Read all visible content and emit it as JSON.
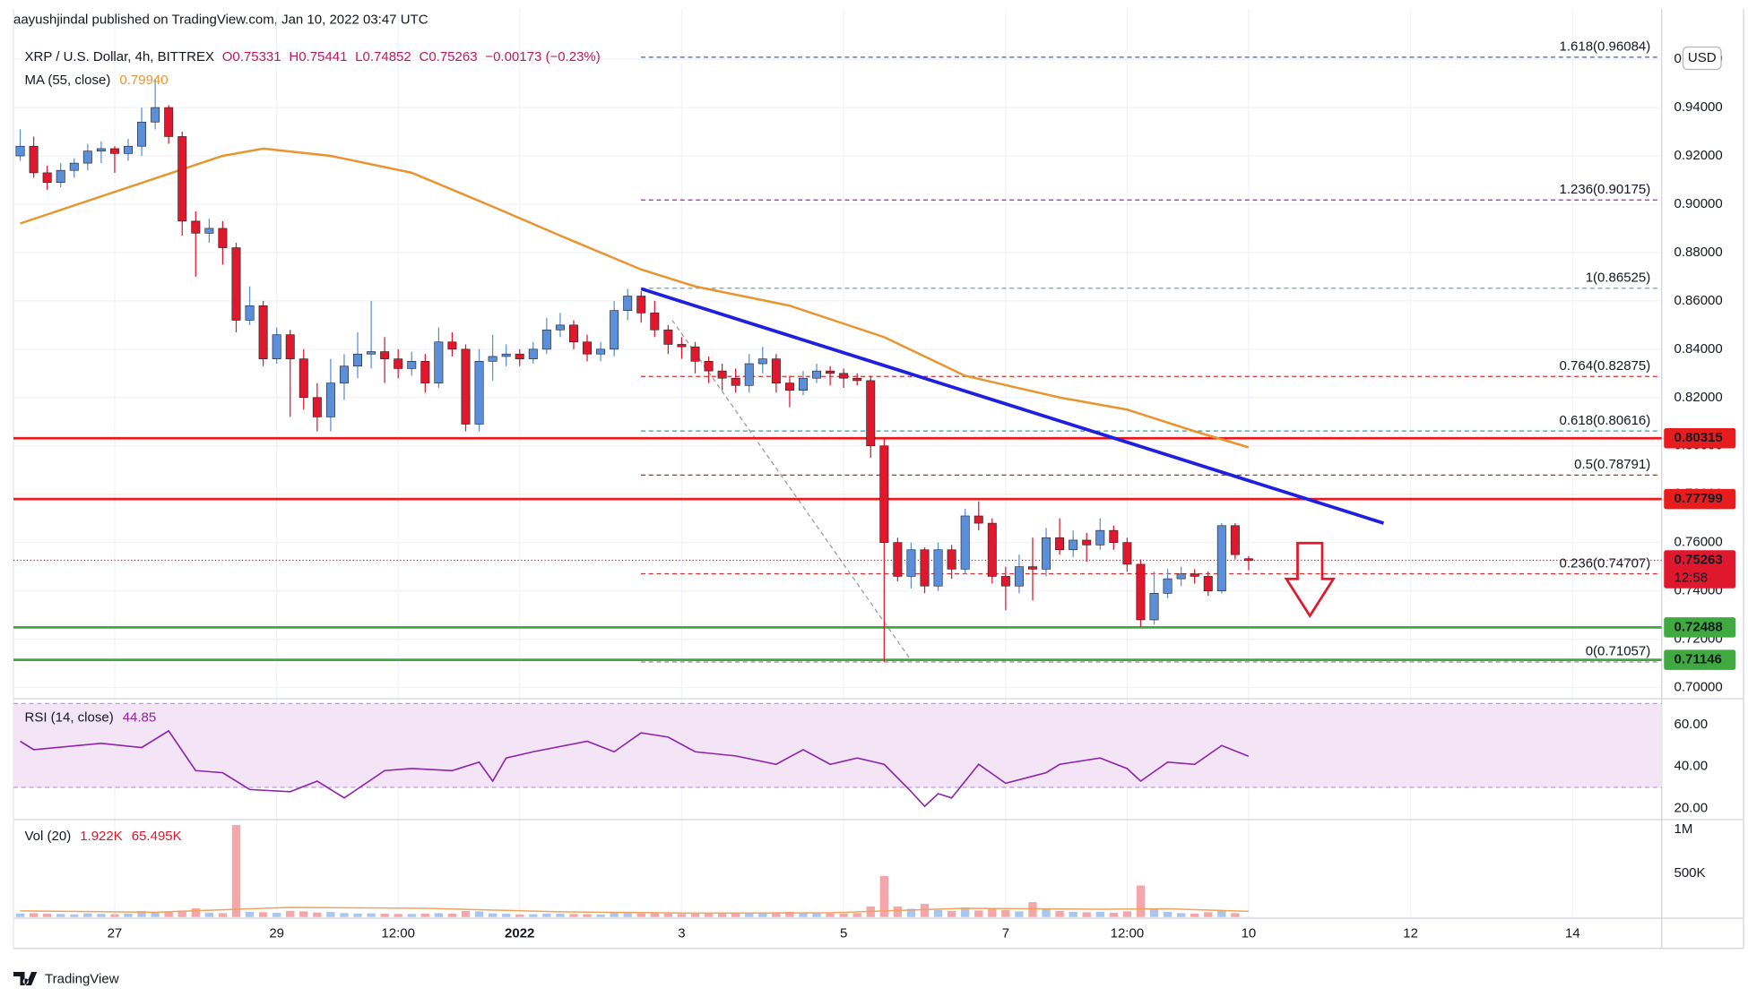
{
  "chart_data": {
    "type": "candlestick",
    "header": "aayushjindal published on TradingView.com, Jan 10, 2022 03:47 UTC",
    "legend": {
      "symbol": "XRP / U.S. Dollar, 4h, BITTREX",
      "open": "O0.75331",
      "high": "H0.75441",
      "low": "L0.74852",
      "close": "C0.75263",
      "change": "−0.00173 (−0.23%)"
    },
    "currency": "USD",
    "footer": "TradingView",
    "up_color": "#5b8fd9",
    "down_color": "#e0182d",
    "xlim": [
      -0.5,
      121.6
    ],
    "xticks": [
      {
        "value": 7,
        "label": "27"
      },
      {
        "value": 19,
        "label": "29"
      },
      {
        "value": 28,
        "label": "12:00"
      },
      {
        "value": 37,
        "label": "2022"
      },
      {
        "value": 49,
        "label": "3"
      },
      {
        "value": 61,
        "label": "5"
      },
      {
        "value": 73,
        "label": "7"
      },
      {
        "value": 82,
        "label": "12:00"
      },
      {
        "value": 91,
        "label": "10"
      },
      {
        "value": 103,
        "label": "12"
      },
      {
        "value": 115,
        "label": "14"
      }
    ],
    "ylim": [
      0.6963,
      0.9669
    ],
    "yticks": [
      {
        "value": 0.7,
        "label": "0.70000"
      },
      {
        "value": 0.72,
        "label": "0.72000"
      },
      {
        "value": 0.74,
        "label": "0.74000"
      },
      {
        "value": 0.76,
        "label": "0.76000"
      },
      {
        "value": 0.78,
        "label": "0.78000"
      },
      {
        "value": 0.8,
        "label": "0.80000"
      },
      {
        "value": 0.82,
        "label": "0.82000"
      },
      {
        "value": 0.84,
        "label": "0.84000"
      },
      {
        "value": 0.86,
        "label": "0.86000"
      },
      {
        "value": 0.88,
        "label": "0.88000"
      },
      {
        "value": 0.9,
        "label": "0.90000"
      },
      {
        "value": 0.92,
        "label": "0.92000"
      },
      {
        "value": 0.94,
        "label": "0.94000"
      },
      {
        "value": 0.96,
        "label": "0.96000"
      }
    ],
    "grid": true,
    "candles": [
      [
        0.92,
        0.931,
        0.918,
        0.924
      ],
      [
        0.924,
        0.928,
        0.911,
        0.913
      ],
      [
        0.913,
        0.916,
        0.906,
        0.909
      ],
      [
        0.909,
        0.917,
        0.907,
        0.914
      ],
      [
        0.914,
        0.919,
        0.911,
        0.917
      ],
      [
        0.917,
        0.925,
        0.914,
        0.922
      ],
      [
        0.922,
        0.926,
        0.917,
        0.923
      ],
      [
        0.923,
        0.924,
        0.913,
        0.921
      ],
      [
        0.921,
        0.927,
        0.918,
        0.924
      ],
      [
        0.924,
        0.94,
        0.92,
        0.934
      ],
      [
        0.934,
        0.952,
        0.931,
        0.94
      ],
      [
        0.94,
        0.941,
        0.925,
        0.928
      ],
      [
        0.928,
        0.93,
        0.887,
        0.893
      ],
      [
        0.893,
        0.897,
        0.87,
        0.888
      ],
      [
        0.888,
        0.894,
        0.884,
        0.89
      ],
      [
        0.89,
        0.893,
        0.875,
        0.882
      ],
      [
        0.882,
        0.884,
        0.847,
        0.852
      ],
      [
        0.852,
        0.866,
        0.85,
        0.858
      ],
      [
        0.858,
        0.86,
        0.833,
        0.836
      ],
      [
        0.836,
        0.849,
        0.834,
        0.846
      ],
      [
        0.846,
        0.848,
        0.812,
        0.836
      ],
      [
        0.836,
        0.84,
        0.815,
        0.82
      ],
      [
        0.82,
        0.826,
        0.806,
        0.812
      ],
      [
        0.812,
        0.836,
        0.806,
        0.826
      ],
      [
        0.826,
        0.838,
        0.819,
        0.833
      ],
      [
        0.833,
        0.847,
        0.828,
        0.838
      ],
      [
        0.838,
        0.86,
        0.832,
        0.839
      ],
      [
        0.839,
        0.845,
        0.826,
        0.836
      ],
      [
        0.836,
        0.84,
        0.828,
        0.832
      ],
      [
        0.832,
        0.839,
        0.829,
        0.835
      ],
      [
        0.835,
        0.838,
        0.822,
        0.826
      ],
      [
        0.826,
        0.849,
        0.824,
        0.843
      ],
      [
        0.843,
        0.847,
        0.837,
        0.84
      ],
      [
        0.84,
        0.842,
        0.806,
        0.809
      ],
      [
        0.809,
        0.84,
        0.806,
        0.835
      ],
      [
        0.835,
        0.846,
        0.827,
        0.837
      ],
      [
        0.837,
        0.842,
        0.833,
        0.838
      ],
      [
        0.838,
        0.84,
        0.833,
        0.836
      ],
      [
        0.836,
        0.843,
        0.834,
        0.84
      ],
      [
        0.84,
        0.853,
        0.838,
        0.848
      ],
      [
        0.848,
        0.855,
        0.845,
        0.85
      ],
      [
        0.85,
        0.852,
        0.84,
        0.843
      ],
      [
        0.843,
        0.846,
        0.835,
        0.838
      ],
      [
        0.838,
        0.843,
        0.835,
        0.84
      ],
      [
        0.84,
        0.86,
        0.837,
        0.856
      ],
      [
        0.856,
        0.865,
        0.852,
        0.862
      ],
      [
        0.862,
        0.864,
        0.851,
        0.855
      ],
      [
        0.855,
        0.86,
        0.845,
        0.848
      ],
      [
        0.848,
        0.85,
        0.838,
        0.842
      ],
      [
        0.842,
        0.845,
        0.836,
        0.841
      ],
      [
        0.841,
        0.843,
        0.83,
        0.835
      ],
      [
        0.835,
        0.837,
        0.826,
        0.831
      ],
      [
        0.831,
        0.834,
        0.823,
        0.828
      ],
      [
        0.828,
        0.832,
        0.822,
        0.825
      ],
      [
        0.825,
        0.838,
        0.822,
        0.834
      ],
      [
        0.834,
        0.841,
        0.83,
        0.836
      ],
      [
        0.836,
        0.838,
        0.822,
        0.826
      ],
      [
        0.826,
        0.829,
        0.816,
        0.823
      ],
      [
        0.823,
        0.831,
        0.821,
        0.828
      ],
      [
        0.828,
        0.834,
        0.826,
        0.831
      ],
      [
        0.831,
        0.833,
        0.825,
        0.83
      ],
      [
        0.83,
        0.832,
        0.824,
        0.828
      ],
      [
        0.828,
        0.83,
        0.825,
        0.827
      ],
      [
        0.827,
        0.829,
        0.795,
        0.8
      ],
      [
        0.8,
        0.803,
        0.7106,
        0.76
      ],
      [
        0.76,
        0.762,
        0.744,
        0.746
      ],
      [
        0.746,
        0.76,
        0.741,
        0.757
      ],
      [
        0.757,
        0.758,
        0.739,
        0.742
      ],
      [
        0.742,
        0.76,
        0.74,
        0.757
      ],
      [
        0.757,
        0.759,
        0.745,
        0.749
      ],
      [
        0.749,
        0.774,
        0.747,
        0.771
      ],
      [
        0.771,
        0.777,
        0.765,
        0.768
      ],
      [
        0.768,
        0.77,
        0.743,
        0.746
      ],
      [
        0.746,
        0.75,
        0.732,
        0.742
      ],
      [
        0.742,
        0.755,
        0.739,
        0.75
      ],
      [
        0.75,
        0.762,
        0.736,
        0.749
      ],
      [
        0.749,
        0.766,
        0.746,
        0.762
      ],
      [
        0.762,
        0.77,
        0.755,
        0.757
      ],
      [
        0.757,
        0.765,
        0.754,
        0.761
      ],
      [
        0.761,
        0.764,
        0.752,
        0.759
      ],
      [
        0.759,
        0.77,
        0.757,
        0.765
      ],
      [
        0.765,
        0.767,
        0.757,
        0.76
      ],
      [
        0.76,
        0.762,
        0.748,
        0.751
      ],
      [
        0.751,
        0.753,
        0.725,
        0.728
      ],
      [
        0.728,
        0.748,
        0.726,
        0.739
      ],
      [
        0.739,
        0.749,
        0.737,
        0.745
      ],
      [
        0.745,
        0.75,
        0.742,
        0.747
      ],
      [
        0.747,
        0.749,
        0.743,
        0.746
      ],
      [
        0.746,
        0.748,
        0.738,
        0.74
      ],
      [
        0.74,
        0.768,
        0.739,
        0.767
      ],
      [
        0.767,
        0.768,
        0.753,
        0.755
      ],
      [
        0.75331,
        0.75441,
        0.74852,
        0.75263
      ]
    ],
    "ma": {
      "name": "MA (55, close)",
      "last": "0.79940",
      "color": "#e8952f",
      "x": [
        0,
        15,
        18,
        23,
        29,
        35,
        40,
        46,
        50,
        57,
        64,
        70,
        77,
        82,
        87,
        91
      ],
      "values": [
        0.892,
        0.92,
        0.923,
        0.92,
        0.913,
        0.899,
        0.887,
        0.873,
        0.866,
        0.858,
        0.845,
        0.829,
        0.82,
        0.815,
        0.806,
        0.7994
      ]
    },
    "levels": [
      {
        "value": 0.80315,
        "color": "#e81c1c",
        "kind": "resistance"
      },
      {
        "value": 0.77799,
        "color": "#e81c1c",
        "kind": "resistance"
      },
      {
        "value": 0.72488,
        "color": "#3faa3f",
        "kind": "support"
      },
      {
        "value": 0.71146,
        "color": "#3faa3f",
        "kind": "support"
      }
    ],
    "last_price": {
      "value": 0.75263,
      "countdown": "12:58",
      "color": "#e0182d"
    },
    "fib": [
      {
        "label": "1.618(0.96084)",
        "value": 0.96084,
        "color": "#3d5fd4"
      },
      {
        "label": "1.236(0.90175)",
        "value": 0.90175,
        "color": "#9c27b0"
      },
      {
        "label": "1(0.86525)",
        "value": 0.86525,
        "color": "#61a9d6"
      },
      {
        "label": "0.764(0.82875)",
        "value": 0.82875,
        "color": "#d32f2f"
      },
      {
        "label": "0.618(0.80616)",
        "value": 0.80616,
        "color": "#26a69a"
      },
      {
        "label": "0.5(0.78791)",
        "value": 0.78791,
        "color": "#6d4c41"
      },
      {
        "label": "0.236(0.74707)",
        "value": 0.74707,
        "color": "#d32f2f"
      },
      {
        "label": "0(0.71057)",
        "value": 0.71057,
        "color": "#8a8a8a"
      }
    ],
    "fib_anchor": {
      "x": [
        48.3,
        65.9
      ],
      "values": [
        0.852,
        0.712
      ]
    },
    "trendline": {
      "color": "#1f1fe0",
      "x": [
        46,
        101
      ],
      "values": [
        0.865,
        0.768
      ]
    },
    "rsi": {
      "name": "RSI (14, close)",
      "last": "44.85",
      "color": "#8e24aa",
      "ylim": [
        15.7,
        70.7
      ],
      "band": [
        30,
        70
      ],
      "yticks": [
        {
          "value": 20,
          "label": "20.00"
        },
        {
          "value": 40,
          "label": "40.00"
        },
        {
          "value": 60,
          "label": "60.00"
        }
      ],
      "x": [
        0,
        1,
        6,
        9,
        11,
        13,
        15,
        17,
        20,
        22,
        24,
        27,
        29,
        32,
        34,
        35,
        36,
        38,
        42,
        44,
        46,
        48,
        50,
        53,
        56,
        58,
        60,
        62,
        64,
        66,
        67,
        68,
        69,
        71,
        73,
        76,
        77,
        80,
        82,
        83,
        85,
        87,
        89,
        91
      ],
      "values": [
        52,
        48,
        51,
        49,
        57,
        38,
        37,
        29,
        28,
        33,
        25,
        38,
        39,
        38,
        42,
        33,
        44,
        47,
        52,
        47,
        56,
        54,
        47,
        45,
        41,
        48,
        41,
        44,
        41,
        28,
        21,
        27,
        25,
        41,
        32,
        37,
        41,
        44,
        39,
        33,
        42,
        41,
        50,
        44.85
      ]
    },
    "volume": {
      "name": "Vol (20)",
      "last": "1.922K",
      "ma_last": "65.495K",
      "up_color": "#a9c6ee",
      "down_color": "#f4a6ab",
      "ma_color": "#f0a35c",
      "ylim": [
        0,
        1100000
      ],
      "yticks": [
        {
          "value": 500000,
          "label": "500K"
        },
        {
          "value": 1000000,
          "label": "1M"
        }
      ],
      "values": [
        40000,
        45000,
        38000,
        35000,
        30000,
        42000,
        36000,
        32000,
        40000,
        70000,
        60000,
        55000,
        75000,
        100000,
        50000,
        45000,
        1050000,
        60000,
        55000,
        48000,
        70000,
        65000,
        52000,
        58000,
        45000,
        40000,
        42000,
        38000,
        36000,
        35000,
        40000,
        45000,
        38000,
        70000,
        65000,
        42000,
        38000,
        30000,
        32000,
        40000,
        38000,
        35000,
        33000,
        30000,
        48000,
        45000,
        40000,
        42000,
        38000,
        36000,
        45000,
        40000,
        38000,
        42000,
        48000,
        40000,
        55000,
        60000,
        45000,
        42000,
        40000,
        38000,
        45000,
        120000,
        470000,
        120000,
        95000,
        150000,
        80000,
        70000,
        110000,
        75000,
        100000,
        80000,
        65000,
        170000,
        90000,
        70000,
        60000,
        55000,
        60000,
        50000,
        65000,
        360000,
        90000,
        60000,
        45000,
        40000,
        55000,
        70000,
        45000,
        1922
      ],
      "ma_x": [
        0,
        10,
        16,
        20,
        30,
        40,
        50,
        60,
        64,
        70,
        80,
        85,
        91
      ],
      "ma_values": [
        70000,
        55000,
        90000,
        110000,
        100000,
        60000,
        45000,
        48000,
        70000,
        100000,
        90000,
        95000,
        65495
      ]
    }
  }
}
